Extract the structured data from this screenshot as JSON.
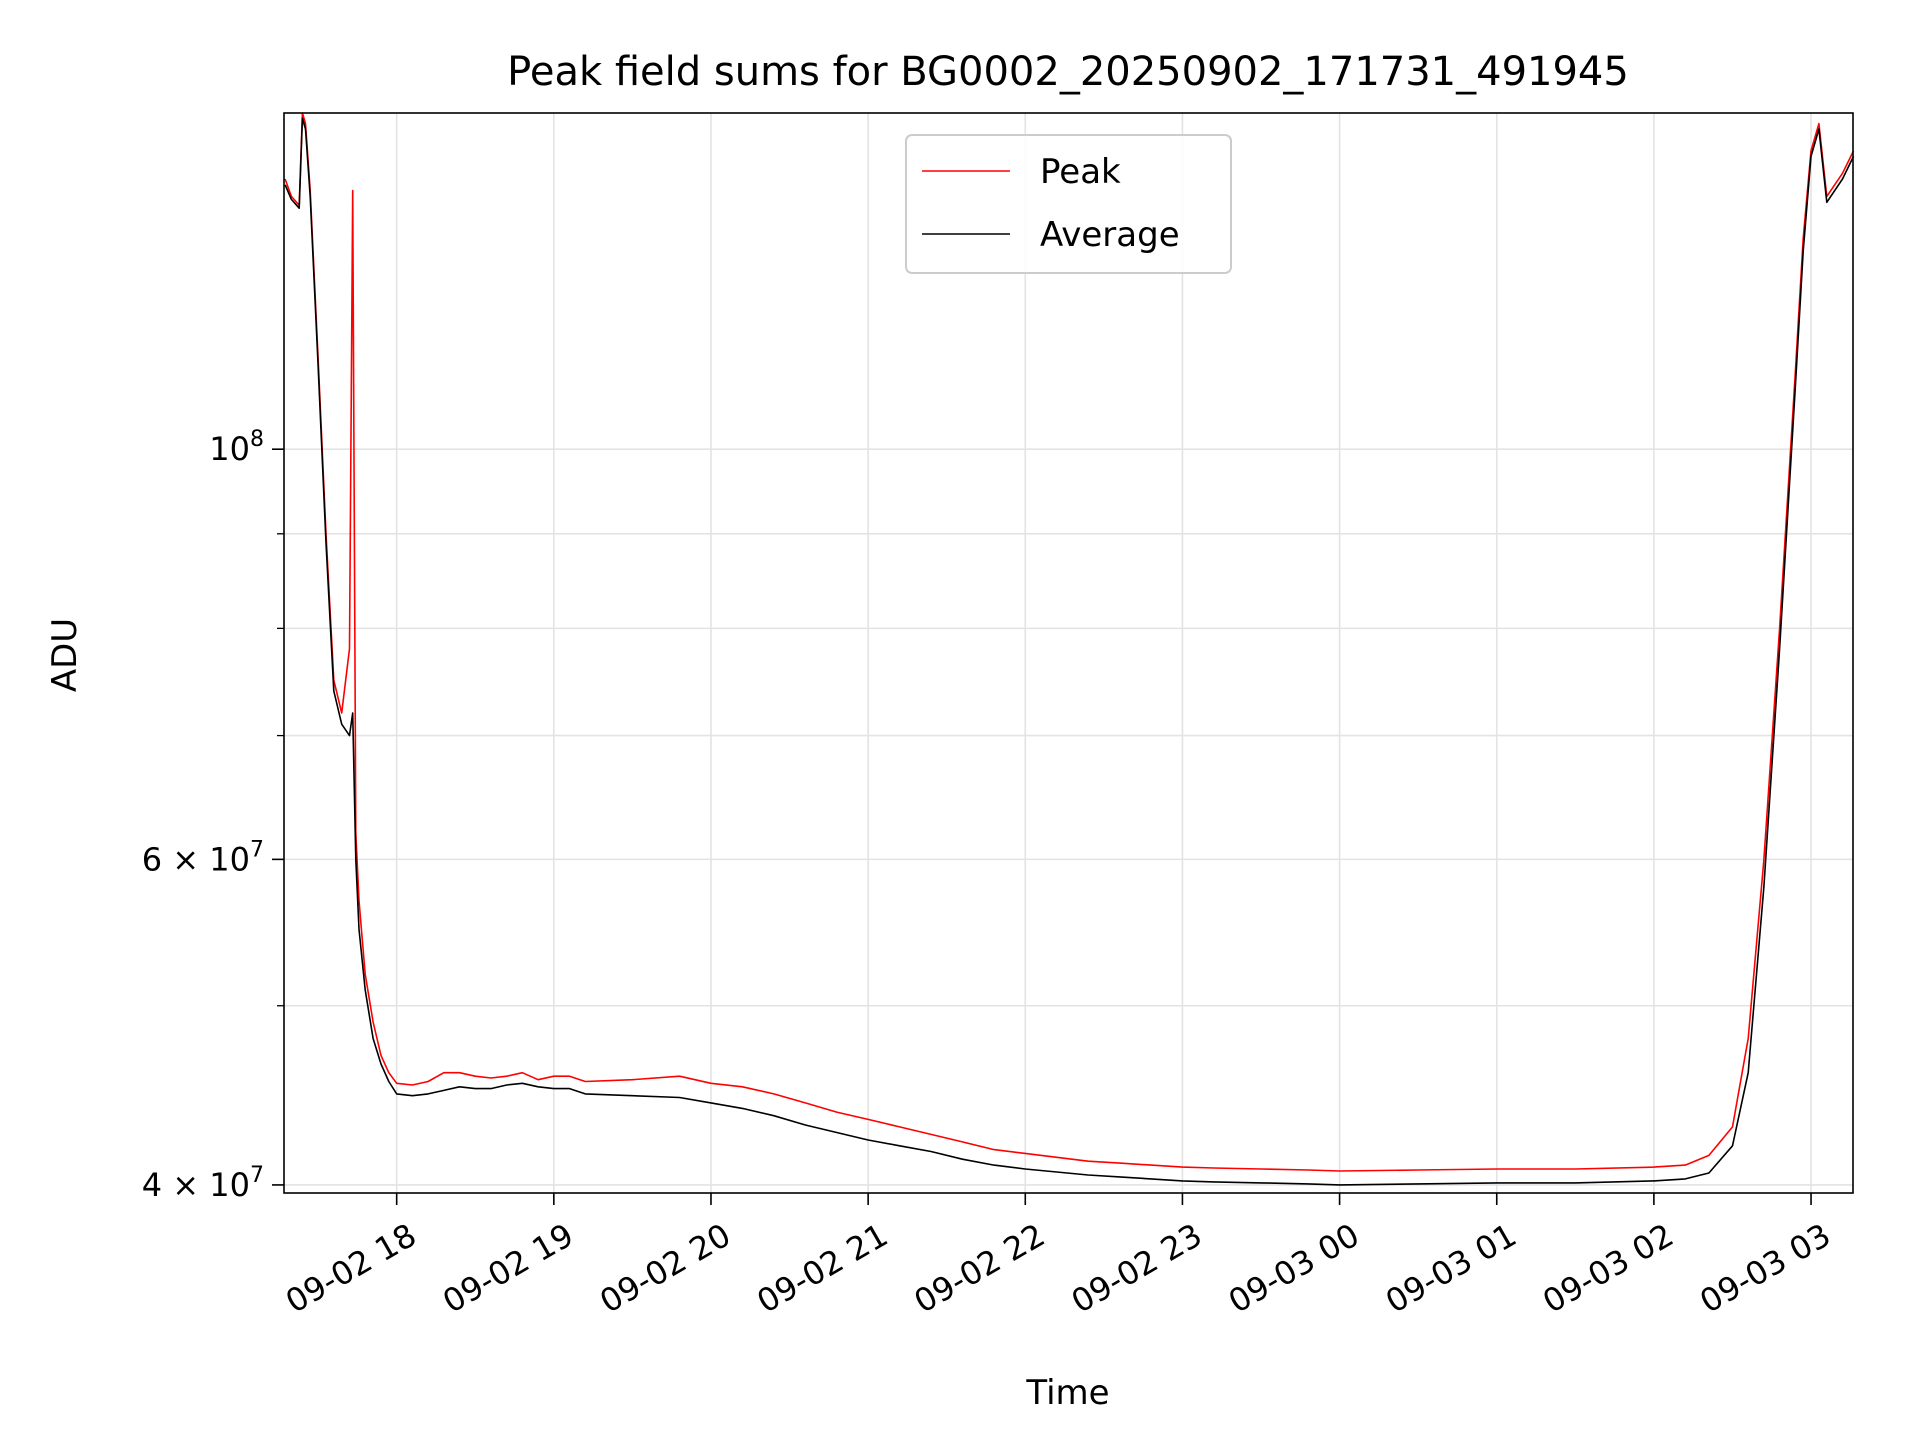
{
  "chart_data": {
    "type": "line",
    "title": "Peak field sums for BG0002_20250902_171731_491945",
    "xlabel": "Time",
    "ylabel": "ADU",
    "yscale": "log",
    "ylim": [
      39600000,
      152000000
    ],
    "xlim": [
      "09-02 17:17",
      "09-03 03:16"
    ],
    "grid": true,
    "legend_position": "upper-center",
    "x_ticks": [
      {
        "hour": 18,
        "label": "09-02 18"
      },
      {
        "hour": 19,
        "label": "09-02 19"
      },
      {
        "hour": 20,
        "label": "09-02 20"
      },
      {
        "hour": 21,
        "label": "09-02 21"
      },
      {
        "hour": 22,
        "label": "09-02 22"
      },
      {
        "hour": 23,
        "label": "09-02 23"
      },
      {
        "hour": 24,
        "label": "09-03 00"
      },
      {
        "hour": 25,
        "label": "09-03 01"
      },
      {
        "hour": 26,
        "label": "09-03 02"
      },
      {
        "hour": 27,
        "label": "09-03 03"
      }
    ],
    "y_major_ticks": [
      {
        "value": 40000000,
        "base": "4 × 10",
        "exp": "7"
      },
      {
        "value": 60000000,
        "base": "6 × 10",
        "exp": "7"
      },
      {
        "value": 100000000,
        "base": "10",
        "exp": "8"
      }
    ],
    "y_minor_ticks": [
      50000000,
      70000000,
      80000000,
      90000000
    ],
    "series": [
      {
        "name": "Peak",
        "color": "#ff0000",
        "x_hours": [
          17.29,
          17.33,
          17.38,
          17.4,
          17.42,
          17.45,
          17.5,
          17.55,
          17.6,
          17.65,
          17.7,
          17.72,
          17.74,
          17.76,
          17.8,
          17.85,
          17.9,
          17.95,
          18.0,
          18.1,
          18.2,
          18.3,
          18.4,
          18.5,
          18.6,
          18.7,
          18.8,
          18.9,
          19.0,
          19.1,
          19.2,
          19.5,
          19.8,
          20.0,
          20.2,
          20.4,
          20.6,
          20.8,
          21.0,
          21.2,
          21.4,
          21.6,
          21.8,
          22.0,
          22.2,
          22.4,
          22.6,
          22.8,
          23.0,
          23.2,
          23.5,
          23.8,
          24.0,
          24.5,
          25.0,
          25.5,
          26.0,
          26.2,
          26.35,
          26.5,
          26.6,
          26.7,
          26.8,
          26.9,
          26.95,
          27.0,
          27.03,
          27.05,
          27.1,
          27.2,
          27.27
        ],
        "values": [
          140000000,
          137000000,
          135500000,
          152000000,
          150000000,
          138000000,
          112000000,
          90000000,
          75000000,
          72000000,
          78000000,
          138000000,
          62000000,
          57000000,
          52000000,
          49000000,
          47000000,
          46000000,
          45400000,
          45300000,
          45500000,
          46000000,
          46000000,
          45800000,
          45700000,
          45800000,
          46000000,
          45600000,
          45800000,
          45800000,
          45500000,
          45600000,
          45800000,
          45400000,
          45200000,
          44800000,
          44300000,
          43800000,
          43400000,
          43000000,
          42600000,
          42200000,
          41800000,
          41600000,
          41400000,
          41200000,
          41100000,
          41000000,
          40900000,
          40850000,
          40800000,
          40750000,
          40700000,
          40750000,
          40800000,
          40800000,
          40900000,
          41000000,
          41500000,
          43000000,
          48000000,
          60000000,
          80000000,
          110000000,
          130000000,
          145000000,
          148000000,
          150000000,
          137000000,
          141000000,
          145000000
        ]
      },
      {
        "name": "Average",
        "color": "#000000",
        "x_hours": [
          17.29,
          17.33,
          17.38,
          17.4,
          17.42,
          17.45,
          17.5,
          17.55,
          17.6,
          17.65,
          17.7,
          17.72,
          17.74,
          17.76,
          17.8,
          17.85,
          17.9,
          17.95,
          18.0,
          18.1,
          18.2,
          18.3,
          18.4,
          18.5,
          18.6,
          18.7,
          18.8,
          18.9,
          19.0,
          19.1,
          19.2,
          19.5,
          19.8,
          20.0,
          20.2,
          20.4,
          20.6,
          20.8,
          21.0,
          21.2,
          21.4,
          21.6,
          21.8,
          22.0,
          22.2,
          22.4,
          22.6,
          22.8,
          23.0,
          23.2,
          23.5,
          23.8,
          24.0,
          24.5,
          25.0,
          25.5,
          26.0,
          26.2,
          26.35,
          26.5,
          26.6,
          26.7,
          26.8,
          26.9,
          26.95,
          27.0,
          27.03,
          27.05,
          27.1,
          27.2,
          27.27
        ],
        "values": [
          139000000,
          136500000,
          135000000,
          151000000,
          149000000,
          137000000,
          111000000,
          89000000,
          74000000,
          71000000,
          70000000,
          72000000,
          60000000,
          55000000,
          51000000,
          48000000,
          46500000,
          45500000,
          44800000,
          44700000,
          44800000,
          45000000,
          45200000,
          45100000,
          45100000,
          45300000,
          45400000,
          45200000,
          45100000,
          45100000,
          44800000,
          44700000,
          44600000,
          44300000,
          44000000,
          43600000,
          43100000,
          42700000,
          42300000,
          42000000,
          41700000,
          41300000,
          41000000,
          40800000,
          40650000,
          40500000,
          40400000,
          40300000,
          40200000,
          40150000,
          40100000,
          40050000,
          40000000,
          40050000,
          40100000,
          40100000,
          40200000,
          40300000,
          40600000,
          42000000,
          46000000,
          58000000,
          78000000,
          108000000,
          128000000,
          144000000,
          147000000,
          149000000,
          136000000,
          140000000,
          144000000
        ]
      }
    ]
  }
}
